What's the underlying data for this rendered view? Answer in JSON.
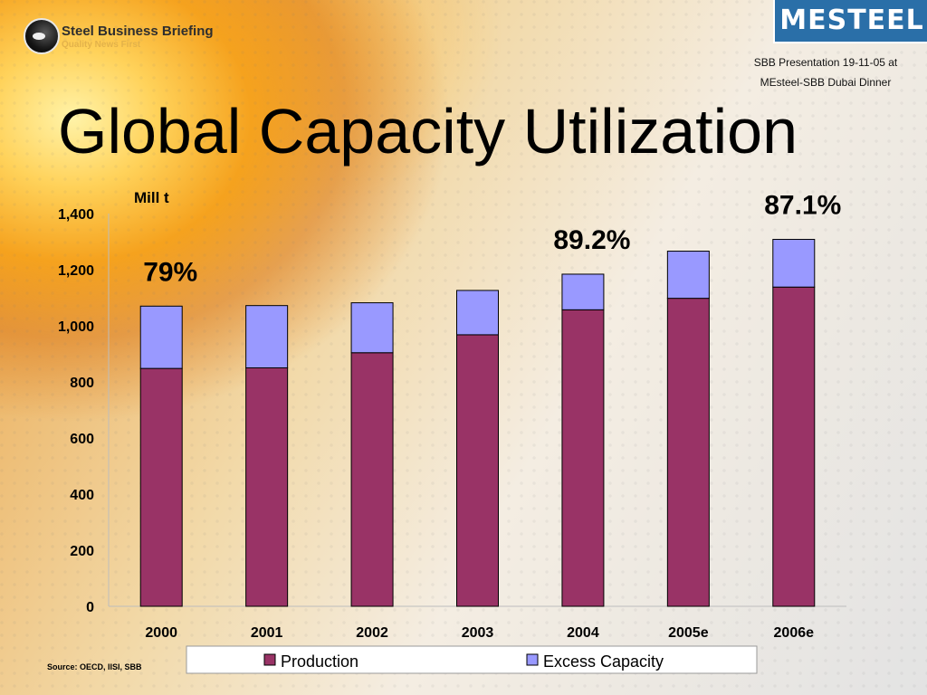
{
  "header": {
    "brand_name": "Steel Business Briefing",
    "brand_tagline": "Quality News First",
    "partner_logo": "MESTEEL",
    "presentation_note_line1": "SBB Presentation 19-11-05 at",
    "presentation_note_line2": "MEsteel-SBB Dubai Dinner"
  },
  "slide": {
    "title": "Global Capacity Utilization",
    "source": "Source: OECD, IISI, SBB"
  },
  "colors": {
    "production": "#993366",
    "excess_capacity": "#9999ff"
  },
  "chart_data": {
    "type": "bar",
    "stacked": true,
    "ylabel": "Mill t",
    "ylim": [
      0,
      1400
    ],
    "yticks": [
      0,
      200,
      400,
      600,
      800,
      1000,
      1200,
      1400
    ],
    "ytick_labels": [
      "0",
      "200",
      "400",
      "600",
      "800",
      "1,000",
      "1,200",
      "1,400"
    ],
    "categories": [
      "2000",
      "2001",
      "2002",
      "2003",
      "2004",
      "2005e",
      "2006e"
    ],
    "series": [
      {
        "name": "Production",
        "values": [
          848,
          850,
          904,
          968,
          1057,
          1098,
          1138
        ]
      },
      {
        "name": "Excess Capacity",
        "values": [
          222,
          222,
          178,
          158,
          127,
          168,
          170
        ]
      }
    ],
    "annotations": [
      {
        "category": "2000",
        "text": "79%"
      },
      {
        "category": "2004",
        "text": "89.2%"
      },
      {
        "category": "2006e",
        "text": "87.1%"
      }
    ],
    "legend_position": "bottom",
    "grid": false
  }
}
